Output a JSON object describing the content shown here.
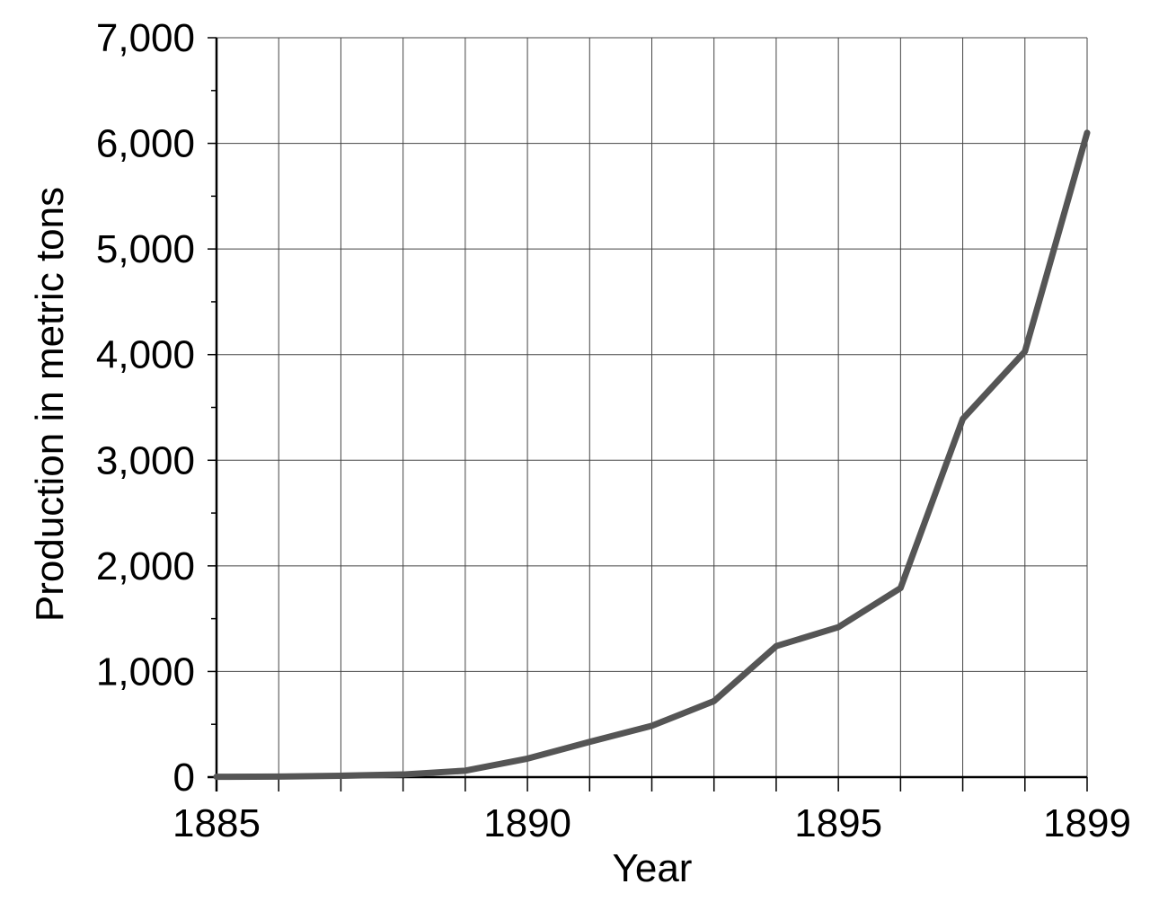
{
  "chart_data": {
    "type": "line",
    "title": "",
    "xlabel": "Year",
    "ylabel": "Production in metric tons",
    "x": [
      1885,
      1886,
      1887,
      1888,
      1889,
      1890,
      1891,
      1892,
      1893,
      1894,
      1895,
      1896,
      1897,
      1898,
      1899
    ],
    "series": [
      {
        "values": [
          3,
          5,
          13,
          25,
          61,
          175,
          334,
          486,
          720,
          1240,
          1420,
          1790,
          3390,
          4030,
          6100
        ]
      }
    ],
    "xlim": [
      1885,
      1899
    ],
    "ylim": [
      0,
      7000
    ],
    "x_tick_labels": [
      "1885",
      "1890",
      "1895",
      "1899"
    ],
    "x_tick_values": [
      1885,
      1890,
      1895,
      1899
    ],
    "y_tick_labels": [
      "0",
      "1,000",
      "2,000",
      "3,000",
      "4,000",
      "5,000",
      "6,000",
      "7,000"
    ],
    "y_tick_values": [
      0,
      1000,
      2000,
      3000,
      4000,
      5000,
      6000,
      7000
    ],
    "grid": true,
    "legend": "none",
    "colors": {
      "line": "#555555",
      "grid": "#444444",
      "axis": "#000000"
    }
  }
}
